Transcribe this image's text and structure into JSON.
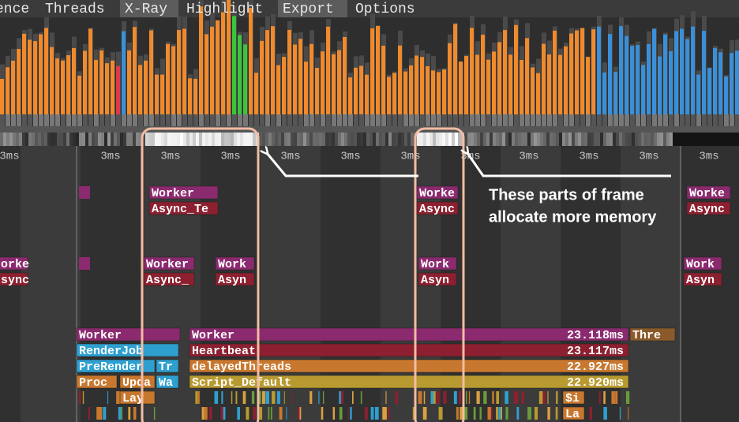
{
  "menu": [
    "ence",
    "Threads",
    "X-Ray",
    "Highlight",
    "Export",
    "Options"
  ],
  "ruler": [
    "3ms",
    "3ms",
    "3ms",
    "3ms",
    "3ms",
    "3ms",
    "3ms",
    "3ms",
    "3ms",
    "3ms",
    "3ms",
    "3ms"
  ],
  "zones": [
    {
      "label": "Worker"
    },
    {
      "label": "Worke"
    },
    {
      "label": "Worke"
    },
    {
      "label": "Async_Te"
    },
    {
      "label": "Async"
    },
    {
      "label": "Async"
    },
    {
      "label": "orke"
    },
    {
      "label": "Worker"
    },
    {
      "label": "Work"
    },
    {
      "label": "Work"
    },
    {
      "label": "Work"
    },
    {
      "label": "sync"
    },
    {
      "label": "Async_"
    },
    {
      "label": "Asyn"
    },
    {
      "label": "Asyn"
    },
    {
      "label": "Asyn"
    },
    {
      "label": "Worker"
    },
    {
      "label": "Worker",
      "time": "23.118ms"
    },
    {
      "label": "Thre"
    },
    {
      "label": "RenderJob"
    },
    {
      "label": "Heartbeat",
      "time": "23.117ms"
    },
    {
      "label": "PreRender"
    },
    {
      "label": "Tr"
    },
    {
      "label": "delayedThreads",
      "time": "22.927ms"
    },
    {
      "label": "Proc"
    },
    {
      "label": "Upda"
    },
    {
      "label": "Wa"
    },
    {
      "label": "Script_Default",
      "time": "22.920ms"
    },
    {
      "label": "Lay"
    },
    {
      "label": "$i"
    },
    {
      "label": "La"
    }
  ],
  "annotation": [
    "These parts of frame",
    "allocate more memory"
  ]
}
